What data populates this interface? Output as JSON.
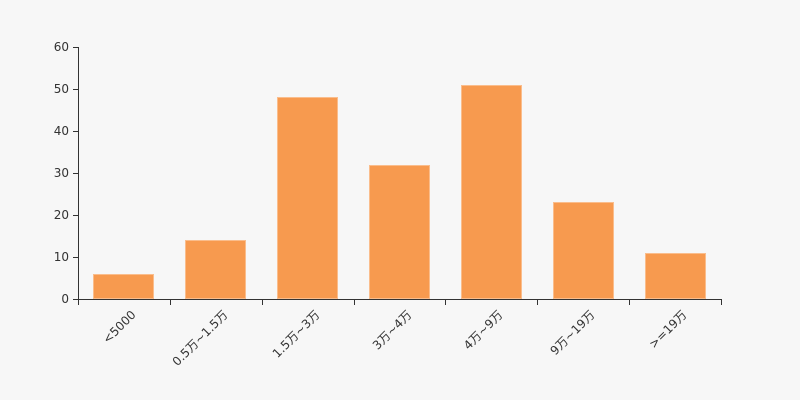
{
  "chart_data": {
    "type": "bar",
    "title": "",
    "xlabel": "",
    "ylabel": "",
    "categories": [
      "<5000",
      "0.5万~1.5万",
      "1.5万~3万",
      "3万~4万",
      "4万~9万",
      "9万~19万",
      ">=19万"
    ],
    "values": [
      6,
      14,
      48,
      32,
      51,
      23,
      11
    ],
    "ylim": [
      0,
      60
    ],
    "yticks": [
      0,
      10,
      20,
      30,
      40,
      50,
      60
    ],
    "grid": false,
    "legend_position": "none",
    "colors": {
      "bar": "#f79a4f",
      "axis": "#333333",
      "tick_label": "#333333",
      "background": "#f7f7f7"
    }
  }
}
